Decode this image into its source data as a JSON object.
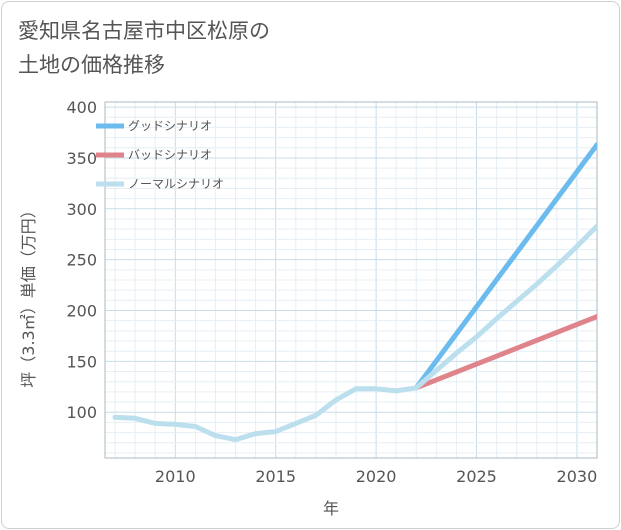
{
  "title": {
    "line1": "愛知県名古屋市中区松原の",
    "line2": "土地の価格推移"
  },
  "chart_data": {
    "type": "line",
    "xlabel": "年",
    "ylabel": "坪（3.3㎡）単価（万円）",
    "xlim": [
      2006.5,
      2031
    ],
    "ylim": [
      55,
      405
    ],
    "x_ticks": [
      2010,
      2015,
      2020,
      2025,
      2030
    ],
    "y_ticks": [
      100,
      150,
      200,
      250,
      300,
      350,
      400
    ],
    "grid": true,
    "legend_position": "top-left",
    "series": [
      {
        "name": "グッドシナリオ",
        "color": "#6bbbee",
        "x": [
          2022,
          2031
        ],
        "values": [
          124,
          363
        ]
      },
      {
        "name": "バッドシナリオ",
        "color": "#e0848c",
        "x": [
          2022,
          2031
        ],
        "values": [
          124,
          194
        ]
      },
      {
        "name": "ノーマルシナリオ",
        "color": "#bcdfee",
        "x": [
          2007,
          2008,
          2009,
          2010,
          2011,
          2012,
          2013,
          2014,
          2015,
          2016,
          2017,
          2018,
          2019,
          2020,
          2021,
          2022,
          2023,
          2024,
          2025,
          2026,
          2027,
          2028,
          2029,
          2030,
          2031
        ],
        "values": [
          95,
          94,
          89,
          88,
          86,
          77,
          73,
          79,
          81,
          89,
          97,
          112,
          123,
          123,
          121,
          124,
          141,
          158,
          174,
          192,
          209,
          226,
          244,
          263,
          283
        ]
      }
    ]
  }
}
